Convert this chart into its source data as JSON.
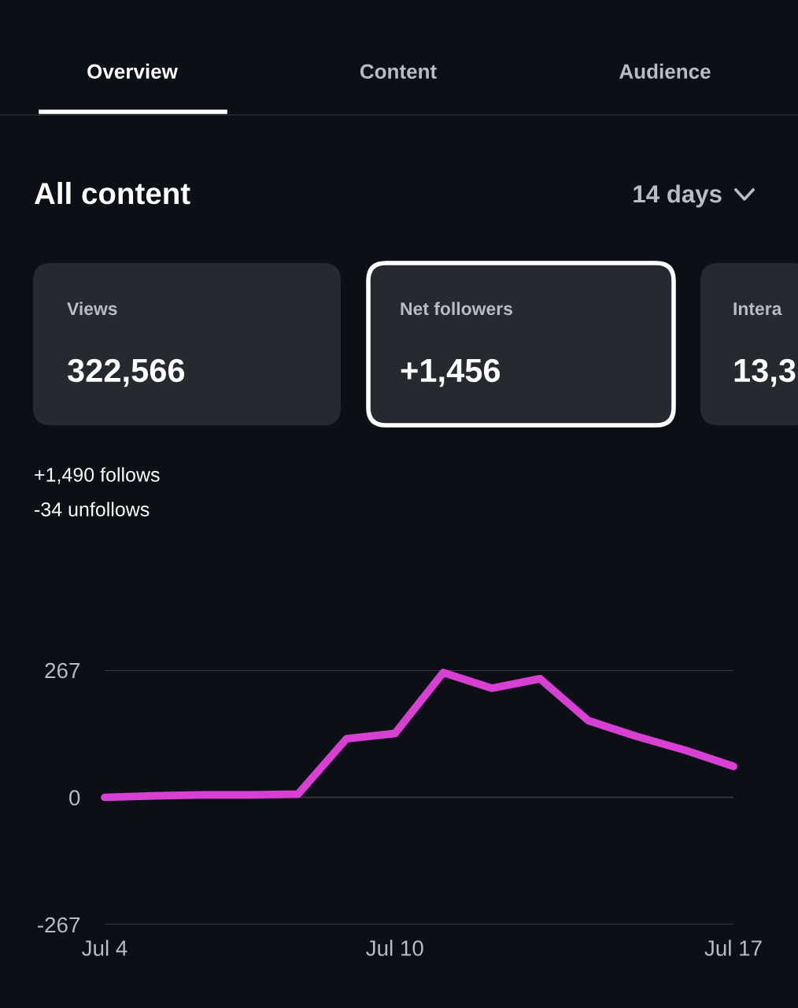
{
  "chart_data": {
    "type": "line",
    "categories": [
      "Jul 4",
      null,
      null,
      null,
      null,
      null,
      "Jul 10",
      null,
      null,
      null,
      null,
      null,
      null,
      "Jul 17"
    ],
    "series": [
      {
        "color": "#d840d4",
        "values": [
          0,
          3,
          5,
          5,
          7,
          123,
          134,
          262,
          229,
          249,
          161,
          128,
          99,
          65
        ]
      }
    ],
    "ylim": [
      -267,
      267
    ],
    "yticks": [
      -267,
      0,
      267
    ],
    "grid": "y",
    "legend": false,
    "marker": "none",
    "line_style": "solid",
    "annotations": [
      "Overview",
      "Content",
      "Audience",
      "All content",
      "14 days",
      "Views",
      "322,566",
      "Net followers",
      "+1,456",
      "Intera",
      "13,3",
      "+1,490 follows",
      "-34 unfollows"
    ]
  }
}
